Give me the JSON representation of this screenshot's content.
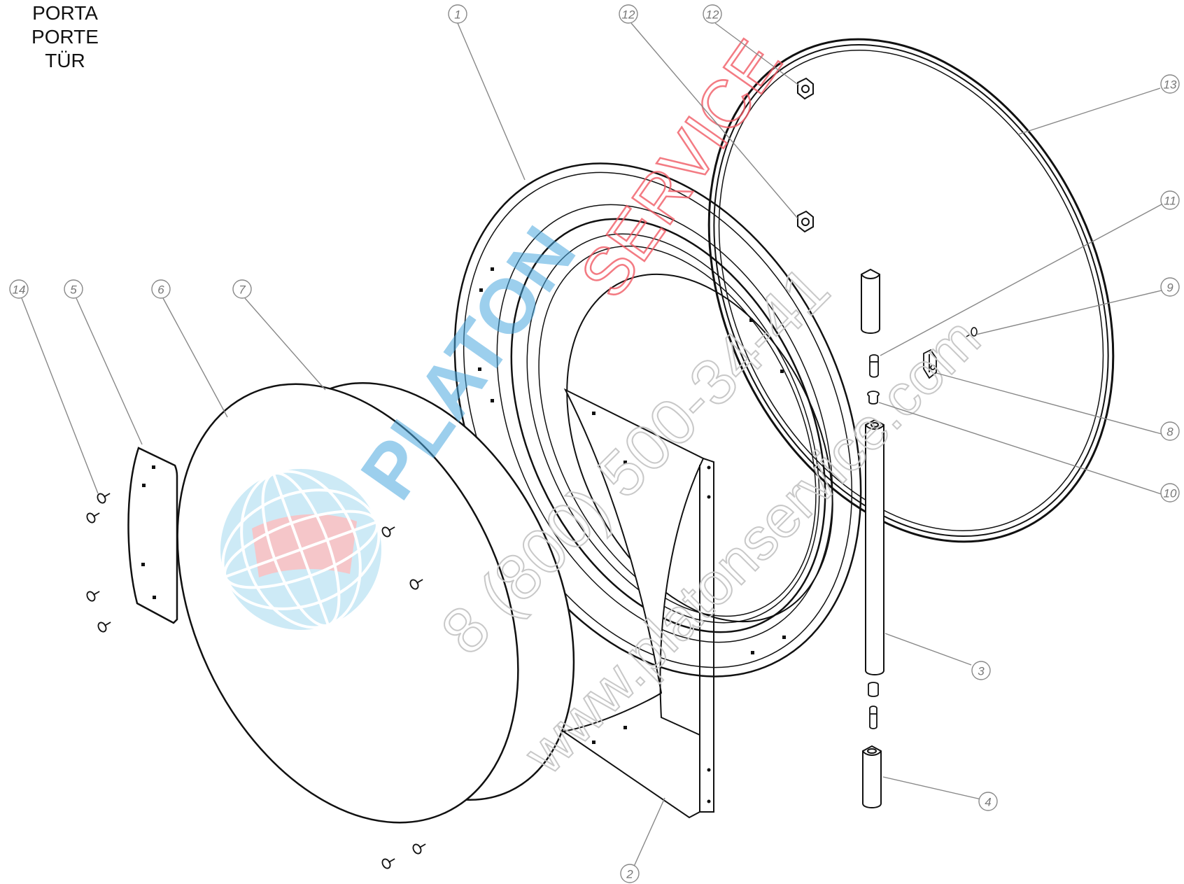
{
  "title": {
    "lines": [
      "PORTA",
      "PORTE",
      "TÜR"
    ]
  },
  "callouts": [
    "1",
    "12",
    "12",
    "13",
    "11",
    "9",
    "8",
    "10",
    "3",
    "4",
    "2",
    "14",
    "5",
    "6",
    "7"
  ],
  "watermark": {
    "brand": "PLATON",
    "service": "SERVICE",
    "phone": "8 (800) 500-34-41",
    "url": "www.platonservice.com",
    "colors": {
      "brand": "#4aa8de",
      "service": "#f05a64",
      "phone": "#c8c8c8",
      "url": "#c8c8c8"
    }
  },
  "colors": {
    "line": "#111111",
    "leader": "#888888",
    "callout": "#888888"
  }
}
